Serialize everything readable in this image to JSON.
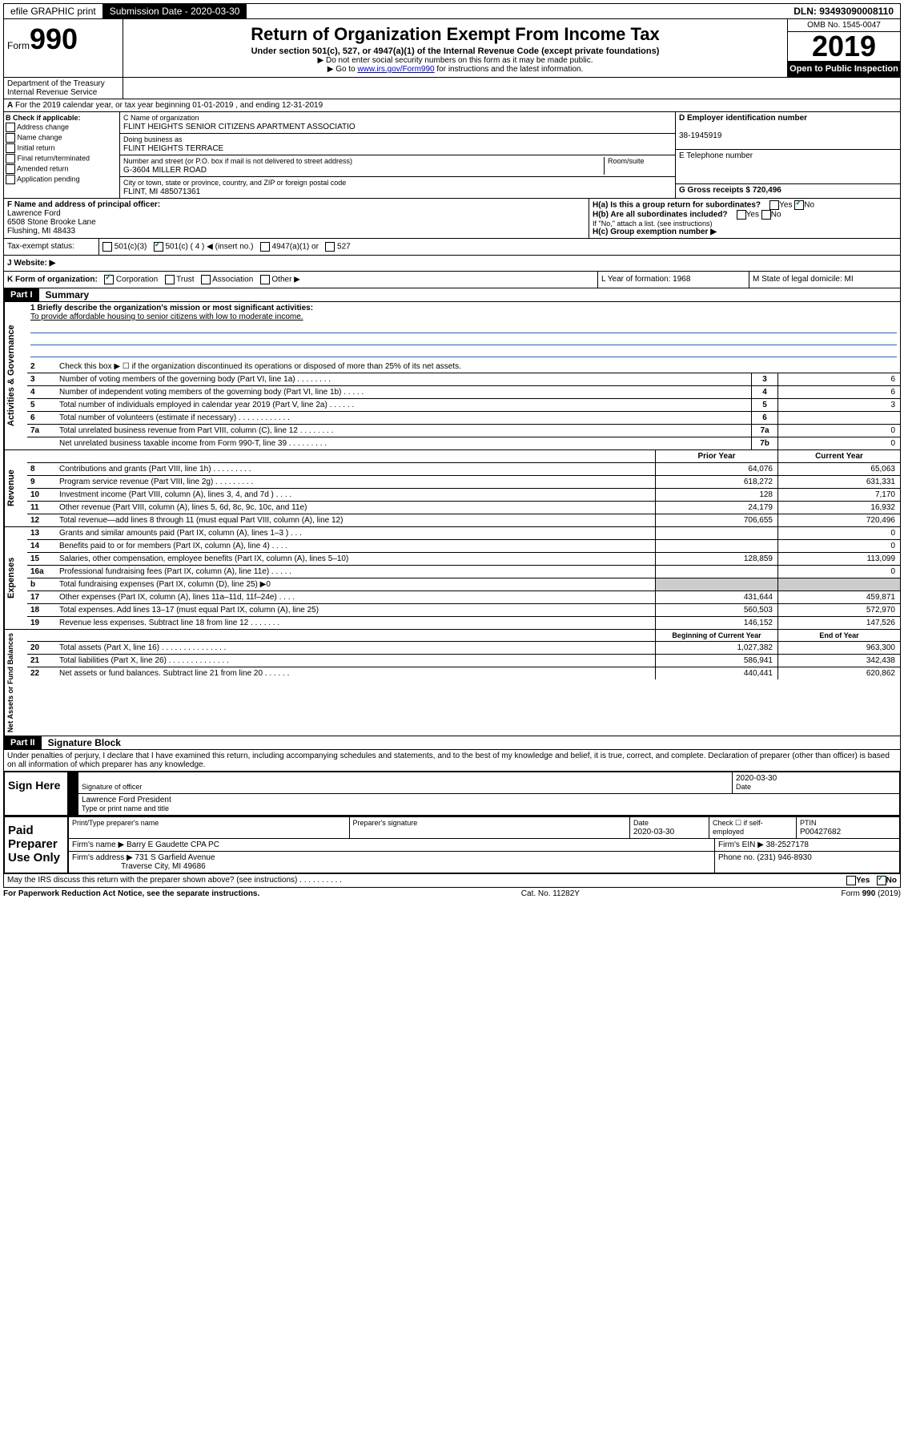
{
  "top": {
    "efile": "efile GRAPHIC print",
    "sub_label": "Submission Date - 2020-03-30",
    "dln": "DLN: 93493090008110"
  },
  "header": {
    "form": "Form",
    "num": "990",
    "title": "Return of Organization Exempt From Income Tax",
    "sub": "Under section 501(c), 527, or 4947(a)(1) of the Internal Revenue Code (except private foundations)",
    "note1": "▶ Do not enter social security numbers on this form as it may be made public.",
    "note2a": "▶ Go to ",
    "note2_link": "www.irs.gov/Form990",
    "note2b": " for instructions and the latest information.",
    "omb": "OMB No. 1545-0047",
    "year": "2019",
    "open": "Open to Public Inspection",
    "dept": "Department of the Treasury Internal Revenue Service"
  },
  "period": "For the 2019 calendar year, or tax year beginning 01-01-2019     , and ending 12-31-2019",
  "b": {
    "hdr": "B Check if applicable:",
    "items": [
      "Address change",
      "Name change",
      "Initial return",
      "Final return/terminated",
      "Amended return",
      "Application pending"
    ]
  },
  "c": {
    "name_lbl": "C Name of organization",
    "name": "FLINT HEIGHTS SENIOR CITIZENS APARTMENT ASSOCIATIO",
    "dba_lbl": "Doing business as",
    "dba": "FLINT HEIGHTS TERRACE",
    "addr_lbl": "Number and street (or P.O. box if mail is not delivered to street address)",
    "room_lbl": "Room/suite",
    "addr": "G-3604 MILLER ROAD",
    "city_lbl": "City or town, state or province, country, and ZIP or foreign postal code",
    "city": "FLINT, MI  485071361"
  },
  "d": {
    "lbl": "D Employer identification number",
    "val": "38-1945919"
  },
  "e": {
    "lbl": "E Telephone number"
  },
  "g": {
    "lbl": "G Gross receipts $ 720,496"
  },
  "f": {
    "lbl": "F  Name and address of principal officer:",
    "name": "Lawrence Ford",
    "addr1": "6508 Stone Brooke Lane",
    "addr2": "Flushing, MI  48433"
  },
  "h": {
    "a": "H(a)  Is this a group return for subordinates?",
    "b": "H(b)  Are all subordinates included?",
    "b_note": "If \"No,\" attach a list. (see instructions)",
    "c": "H(c)  Group exemption number ▶",
    "yes": "Yes",
    "no": "No"
  },
  "i": {
    "lbl": "Tax-exempt status:",
    "t1": "501(c)(3)",
    "t2": "501(c) ( 4 ) ◀ (insert no.)",
    "t3": "4947(a)(1) or",
    "t4": "527"
  },
  "j": {
    "lbl": "J    Website: ▶"
  },
  "k": {
    "lbl": "K Form of organization:",
    "o1": "Corporation",
    "o2": "Trust",
    "o3": "Association",
    "o4": "Other ▶"
  },
  "l": {
    "lbl": "L Year of formation: 1968"
  },
  "m": {
    "lbl": "M State of legal domicile: MI"
  },
  "part1": {
    "hdr": "Part I",
    "title": "Summary"
  },
  "gov": {
    "tab": "Activities & Governance",
    "l1": "1  Briefly describe the organization's mission or most significant activities:",
    "mission": "To provide affordable housing to senior citizens with low to moderate income.",
    "l2": "Check this box ▶ ☐  if the organization discontinued its operations or disposed of more than 25% of its net assets.",
    "lines": [
      {
        "n": "3",
        "t": "Number of voting members of the governing body (Part VI, line 1a)   .    .    .    .    .    .    .    .",
        "b": "3",
        "v": "6"
      },
      {
        "n": "4",
        "t": "Number of independent voting members of the governing body (Part VI, line 1b)   .    .    .    .    .",
        "b": "4",
        "v": "6"
      },
      {
        "n": "5",
        "t": "Total number of individuals employed in calendar year 2019 (Part V, line 2a)   .    .    .    .    .    .",
        "b": "5",
        "v": "3"
      },
      {
        "n": "6",
        "t": "Total number of volunteers (estimate if necessary)   .    .    .    .    .    .    .    .    .    .    .    .",
        "b": "6",
        "v": ""
      },
      {
        "n": "7a",
        "t": "Total unrelated business revenue from Part VIII, column (C), line 12   .    .    .    .    .    .    .    .",
        "b": "7a",
        "v": "0"
      },
      {
        "n": "",
        "t": "Net unrelated business taxable income from Form 990-T, line 39   .    .    .    .    .    .    .    .    .",
        "b": "7b",
        "v": "0"
      }
    ]
  },
  "cols": {
    "py": "Prior Year",
    "cy": "Current Year",
    "boy": "Beginning of Current Year",
    "eoy": "End of Year"
  },
  "rev": {
    "tab": "Revenue",
    "lines": [
      {
        "n": "8",
        "t": "Contributions and grants (Part VIII, line 1h)   .    .    .    .    .    .    .    .    .",
        "py": "64,076",
        "cy": "65,063"
      },
      {
        "n": "9",
        "t": "Program service revenue (Part VIII, line 2g)   .    .    .    .    .    .    .    .    .",
        "py": "618,272",
        "cy": "631,331"
      },
      {
        "n": "10",
        "t": "Investment income (Part VIII, column (A), lines 3, 4, and 7d )   .    .    .    .",
        "py": "128",
        "cy": "7,170"
      },
      {
        "n": "11",
        "t": "Other revenue (Part VIII, column (A), lines 5, 6d, 8c, 9c, 10c, and 11e)",
        "py": "24,179",
        "cy": "16,932"
      },
      {
        "n": "12",
        "t": "Total revenue—add lines 8 through 11 (must equal Part VIII, column (A), line 12)",
        "py": "706,655",
        "cy": "720,496"
      }
    ]
  },
  "exp": {
    "tab": "Expenses",
    "lines": [
      {
        "n": "13",
        "t": "Grants and similar amounts paid (Part IX, column (A), lines 1–3 )   .    .    .",
        "py": "",
        "cy": "0"
      },
      {
        "n": "14",
        "t": "Benefits paid to or for members (Part IX, column (A), line 4)   .    .    .    .",
        "py": "",
        "cy": "0"
      },
      {
        "n": "15",
        "t": "Salaries, other compensation, employee benefits (Part IX, column (A), lines 5–10)",
        "py": "128,859",
        "cy": "113,099"
      },
      {
        "n": "16a",
        "t": "Professional fundraising fees (Part IX, column (A), line 11e)   .    .    .    .    .",
        "py": "",
        "cy": "0"
      },
      {
        "n": "b",
        "t": "Total fundraising expenses (Part IX, column (D), line 25) ▶0",
        "py": "—",
        "cy": "—"
      },
      {
        "n": "17",
        "t": "Other expenses (Part IX, column (A), lines 11a–11d, 11f–24e)   .    .    .    .",
        "py": "431,644",
        "cy": "459,871"
      },
      {
        "n": "18",
        "t": "Total expenses. Add lines 13–17 (must equal Part IX, column (A), line 25)",
        "py": "560,503",
        "cy": "572,970"
      },
      {
        "n": "19",
        "t": "Revenue less expenses. Subtract line 18 from line 12   .    .    .    .    .    .    .",
        "py": "146,152",
        "cy": "147,526"
      }
    ]
  },
  "net": {
    "tab": "Net Assets or Fund Balances",
    "lines": [
      {
        "n": "20",
        "t": "Total assets (Part X, line 16)   .    .    .    .    .    .    .    .    .    .    .    .    .    .    .",
        "py": "1,027,382",
        "cy": "963,300"
      },
      {
        "n": "21",
        "t": "Total liabilities (Part X, line 26)   .    .    .    .    .    .    .    .    .    .    .    .    .    .",
        "py": "586,941",
        "cy": "342,438"
      },
      {
        "n": "22",
        "t": "Net assets or fund balances. Subtract line 21 from line 20   .    .    .    .    .    .",
        "py": "440,441",
        "cy": "620,862"
      }
    ]
  },
  "part2": {
    "hdr": "Part II",
    "title": "Signature Block"
  },
  "decl": "Under penalties of perjury, I declare that I have examined this return, including accompanying schedules and statements, and to the best of my knowledge and belief, it is true, correct, and complete. Declaration of preparer (other than officer) is based on all information of which preparer has any knowledge.",
  "sign": {
    "left": "Sign Here",
    "sig_lbl": "Signature of officer",
    "date": "2020-03-30",
    "date_lbl": "Date",
    "name": "Lawrence Ford  President",
    "name_lbl": "Type or print name and title"
  },
  "prep": {
    "left": "Paid Preparer Use Only",
    "pname_lbl": "Print/Type preparer's name",
    "psig_lbl": "Preparer's signature",
    "pdate_lbl": "Date",
    "pdate": "2020-03-30",
    "check_lbl": "Check ☐ if self-employed",
    "ptin_lbl": "PTIN",
    "ptin": "P00427682",
    "firm_lbl": "Firm's name    ▶",
    "firm": "Barry E Gaudette CPA PC",
    "ein_lbl": "Firm's EIN ▶",
    "ein": "38-2527178",
    "addr_lbl": "Firm's address ▶",
    "addr1": "731 S Garfield Avenue",
    "addr2": "Traverse City, MI  49686",
    "phone_lbl": "Phone no.",
    "phone": "(231) 946-8930"
  },
  "discuss": "May the IRS discuss this return with the preparer shown above? (see instructions)    .    .    .    .    .    .    .    .    .    .",
  "footer": {
    "l": "For Paperwork Reduction Act Notice, see the separate instructions.",
    "c": "Cat. No. 11282Y",
    "r": "Form 990 (2019)"
  }
}
